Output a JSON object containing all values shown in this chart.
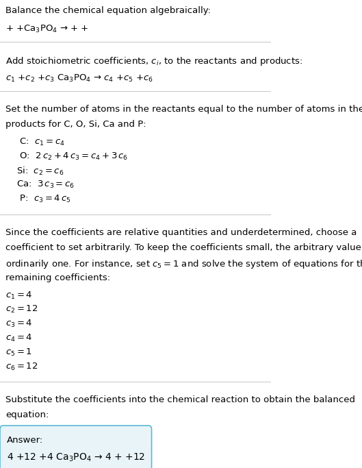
{
  "bg_color": "#ffffff",
  "text_color": "#000000",
  "gray_text": "#555555",
  "answer_box_color": "#e8f4f8",
  "answer_box_edge": "#5bb8d4",
  "section1_title": "Balance the chemical equation algebraically:",
  "section1_eq": "+ +Ca$_3$PO$_4$ → + +",
  "section2_title": "Add stoichiometric coefficients, $c_i$, to the reactants and products:",
  "section2_eq": "$c_1$ +$c_2$ +$c_3$ Ca$_3$PO$_4$ → $c_4$ +$c_5$ +$c_6$",
  "section3_title": "Set the number of atoms in the reactants equal to the number of atoms in the\nproducts for C, O, Si, Ca and P:",
  "section3_lines": [
    " C:  $c_1 = c_4$",
    " O:  $2\\,c_2 + 4\\,c_3 = c_4 + 3\\,c_6$",
    "Si:  $c_2 = c_6$",
    "Ca:  $3\\,c_3 = c_6$",
    " P:  $c_3 = 4\\,c_5$"
  ],
  "section4_title": "Since the coefficients are relative quantities and underdetermined, choose a\ncoefficient to set arbitrarily. To keep the coefficients small, the arbitrary value is\nordinarily one. For instance, set $c_5 = 1$ and solve the system of equations for the\nremaining coefficients:",
  "section4_lines": [
    "$c_1 = 4$",
    "$c_2 = 12$",
    "$c_3 = 4$",
    "$c_4 = 4$",
    "$c_5 = 1$",
    "$c_6 = 12$"
  ],
  "section5_title": "Substitute the coefficients into the chemical reaction to obtain the balanced\nequation:",
  "answer_label": "Answer:",
  "answer_eq": "4 +12 +4 Ca$_3$PO$_4$ → 4 + +12",
  "fig_width": 5.29,
  "fig_height": 6.83,
  "dpi": 100
}
